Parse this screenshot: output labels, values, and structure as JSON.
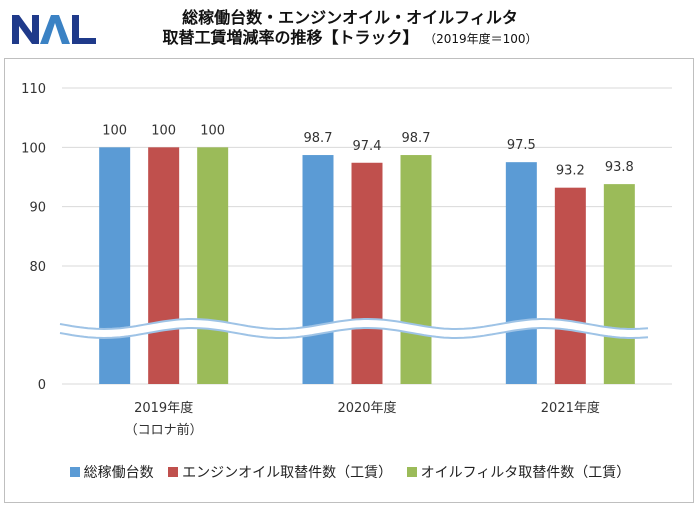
{
  "title": {
    "line1": "総稼働台数・エンジンオイル・オイルフィルタ",
    "line2": "取替工賃増減率の推移【トラック】",
    "note": "（2019年度＝100）"
  },
  "logo": {
    "text": "NAL",
    "colors": {
      "dark": "#1f3a8a",
      "light": "#3b82c4"
    }
  },
  "chart_data": {
    "type": "bar",
    "categories": [
      {
        "label": "2019年度",
        "sublabel": "（コロナ前）"
      },
      {
        "label": "2020年度",
        "sublabel": ""
      },
      {
        "label": "2021年度",
        "sublabel": ""
      }
    ],
    "series": [
      {
        "name": "総稼働台数",
        "color": "#5b9bd5",
        "values": [
          100,
          98.7,
          97.5
        ],
        "labels": [
          "100",
          "98.7",
          "97.5"
        ]
      },
      {
        "name": "エンジンオイル取替件数（工賃）",
        "color": "#c0504d",
        "values": [
          100,
          97.4,
          93.2
        ],
        "labels": [
          "100",
          "97.4",
          "93.2"
        ]
      },
      {
        "name": "オイルフィルタ取替件数（工賃）",
        "color": "#9bbb59",
        "values": [
          100,
          98.7,
          93.8
        ],
        "labels": [
          "100",
          "98.7",
          "93.8"
        ]
      }
    ],
    "y_ticks": [
      "110",
      "100",
      "90",
      "80",
      "0"
    ],
    "axis_break": true,
    "grid": true,
    "legend_position": "bottom"
  }
}
